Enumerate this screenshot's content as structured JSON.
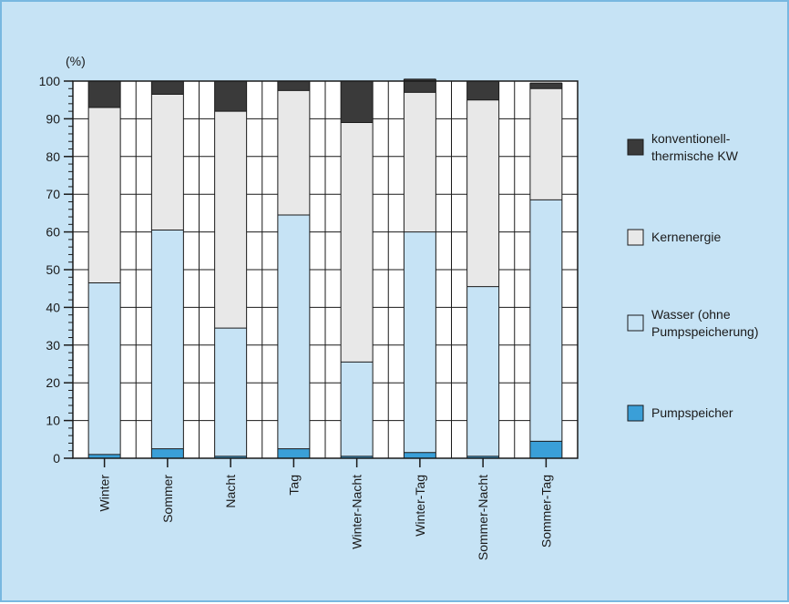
{
  "chart_data": {
    "type": "bar",
    "stacked": true,
    "unit_label": "(%)",
    "ylim": [
      0,
      100
    ],
    "yticks": [
      0,
      10,
      20,
      30,
      40,
      50,
      60,
      70,
      80,
      90,
      100
    ],
    "grid": true,
    "legend_position": "right",
    "categories": [
      "Winter",
      "Sommer",
      "Nacht",
      "Tag",
      "Winter-Nacht",
      "Winter-Tag",
      "Sommer-Nacht",
      "Sommer-Tag"
    ],
    "series": [
      {
        "name": "Pumpspeicher",
        "values": [
          1,
          2.5,
          0.5,
          2.5,
          0.5,
          1.5,
          0.5,
          4.5
        ],
        "color": "#3a9fd8"
      },
      {
        "name": "Wasser (ohne Pumpspeicherung)",
        "values": [
          45.5,
          58,
          34,
          62,
          25,
          58.5,
          45,
          64
        ],
        "color": "#c6e3f5"
      },
      {
        "name": "Kernenergie",
        "values": [
          46.5,
          36,
          57.5,
          33,
          63.5,
          37,
          49.5,
          29.5
        ],
        "color": "#e8e8e8"
      },
      {
        "name": "konventionell-thermische KW",
        "values": [
          7,
          3.5,
          8,
          2.5,
          11,
          3.5,
          5,
          1.5
        ],
        "color": "#3a3a3a"
      }
    ]
  },
  "legend": {
    "items": [
      {
        "lines": [
          "konventionell-",
          "thermische KW"
        ],
        "color": "#3a3a3a"
      },
      {
        "lines": [
          "Kernenergie"
        ],
        "color": "#e8e8e8"
      },
      {
        "lines": [
          "Wasser (ohne",
          "Pumpspeicherung)"
        ],
        "color": "#c6e3f5"
      },
      {
        "lines": [
          "Pumpspeicher"
        ],
        "color": "#3a9fd8"
      }
    ]
  }
}
